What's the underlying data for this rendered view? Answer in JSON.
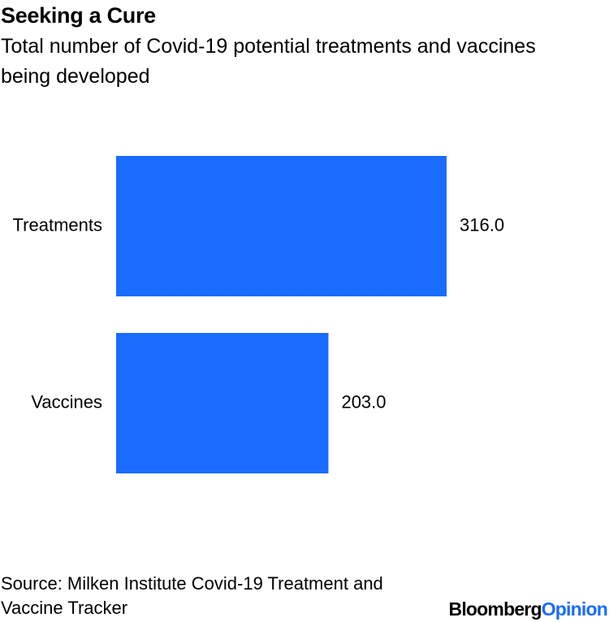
{
  "chart_data": {
    "type": "bar",
    "orientation": "horizontal",
    "title": "Seeking a Cure",
    "subtitle": "Total number of Covid-19 potential treatments and vaccines being developed",
    "categories": [
      "Treatments",
      "Vaccines"
    ],
    "values": [
      316,
      203
    ],
    "value_labels": [
      "316.0",
      "203.0"
    ],
    "color": "#1a6cff",
    "source": "Source: Milken Institute Covid-19 Treatment and Vaccine Tracker",
    "branding": [
      "Bloomberg",
      "Opinion"
    ]
  }
}
